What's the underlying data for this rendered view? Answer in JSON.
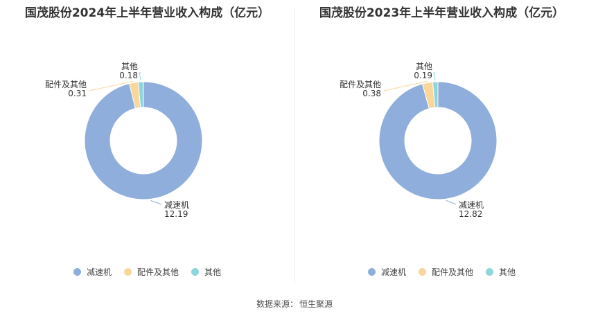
{
  "colors": {
    "减速机": "#8faedb",
    "配件及其他": "#f9d69a",
    "其他": "#8ed6db"
  },
  "chart_data": [
    {
      "type": "pie",
      "style": "donut",
      "title": "国茂股份2024年上半年营业收入构成（亿元）",
      "slices": [
        {
          "label": "减速机",
          "value": 12.19
        },
        {
          "label": "配件及其他",
          "value": 0.31
        },
        {
          "label": "其他",
          "value": 0.18
        }
      ],
      "legend": [
        "减速机",
        "配件及其他",
        "其他"
      ],
      "legend_position": "bottom"
    },
    {
      "type": "pie",
      "style": "donut",
      "title": "国茂股份2023年上半年营业收入构成（亿元）",
      "slices": [
        {
          "label": "减速机",
          "value": 12.82
        },
        {
          "label": "配件及其他",
          "value": 0.38
        },
        {
          "label": "其他",
          "value": 0.19
        }
      ],
      "legend": [
        "减速机",
        "配件及其他",
        "其他"
      ],
      "legend_position": "bottom"
    }
  ],
  "footer": {
    "source_label": "数据来源：",
    "source_name": "恒生聚源"
  }
}
